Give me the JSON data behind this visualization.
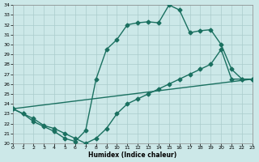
{
  "xlabel": "Humidex (Indice chaleur)",
  "bg_color": "#cce8e8",
  "grid_color": "#aacccc",
  "line_color": "#1a7060",
  "xlim": [
    0,
    23
  ],
  "ylim": [
    20,
    34
  ],
  "xticks": [
    0,
    1,
    2,
    3,
    4,
    5,
    6,
    7,
    8,
    9,
    10,
    11,
    12,
    13,
    14,
    15,
    16,
    17,
    18,
    19,
    20,
    21,
    22,
    23
  ],
  "yticks": [
    20,
    21,
    22,
    23,
    24,
    25,
    26,
    27,
    28,
    29,
    30,
    31,
    32,
    33,
    34
  ],
  "curve1_x": [
    0,
    1,
    2,
    3,
    4,
    5,
    6,
    7,
    8,
    9,
    10,
    11,
    12,
    13,
    14,
    15,
    16,
    17,
    18,
    19,
    20,
    21,
    22,
    23
  ],
  "curve1_y": [
    23.5,
    23.0,
    22.2,
    21.7,
    21.2,
    20.5,
    20.2,
    21.3,
    26.5,
    29.5,
    30.5,
    32.0,
    32.2,
    32.3,
    32.2,
    34.0,
    33.5,
    31.2,
    31.4,
    31.5,
    30.0,
    27.5,
    26.5,
    26.5
  ],
  "curve2_x": [
    0,
    1,
    2,
    3,
    4,
    5,
    6,
    7,
    8,
    9,
    10,
    11,
    12,
    13,
    14,
    15,
    16,
    17,
    18,
    19,
    20,
    21,
    22,
    23
  ],
  "curve2_y": [
    23.5,
    23.0,
    22.5,
    21.8,
    21.5,
    21.0,
    20.5,
    20.0,
    20.5,
    21.5,
    23.0,
    24.0,
    24.5,
    25.0,
    25.5,
    26.0,
    26.5,
    27.0,
    27.5,
    28.0,
    29.5,
    26.5,
    26.5,
    26.5
  ],
  "line_x": [
    0,
    23
  ],
  "line_y": [
    23.5,
    26.5
  ],
  "markersize": 2.5,
  "linewidth": 1.0
}
